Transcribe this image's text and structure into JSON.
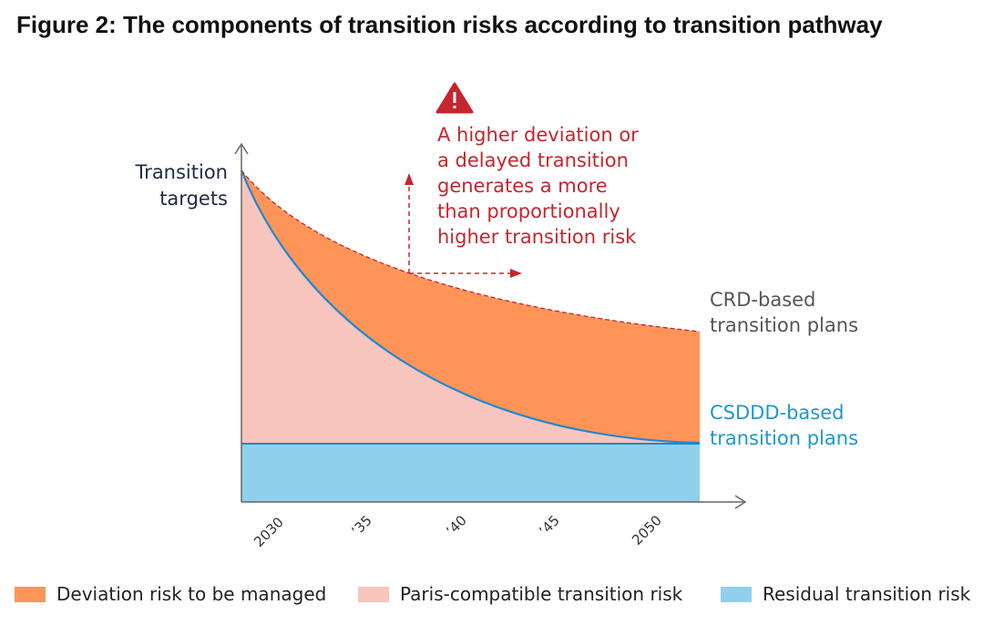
{
  "title": "Figure 2: The components of transition risks according to transition pathway",
  "y_axis_label": [
    "Transition",
    "targets"
  ],
  "x_ticks": [
    "2030",
    "’35",
    "’40",
    "’45",
    "2050"
  ],
  "annotation": {
    "icon": "warning-triangle-icon",
    "lines": [
      "A higher deviation or",
      "a delayed transition",
      "generates a more",
      "than proportionally",
      "higher transition risk"
    ]
  },
  "curve_labels": {
    "crd": [
      "CRD-based",
      "transition plans"
    ],
    "csddd": [
      "CSDDD-based",
      "transition plans"
    ]
  },
  "legend": [
    {
      "label": "Deviation risk to be managed",
      "color": "#ff9459"
    },
    {
      "label": "Paris-compatible transition risk",
      "color": "#f7c5bd"
    },
    {
      "label": "Residual transition risk",
      "color": "#8fd0ec"
    }
  ],
  "colors": {
    "deviation": "#ff9459",
    "paris": "#f7c5bd",
    "residual": "#8fd0ec",
    "csddd_line": "#1e88d0",
    "crd_line": "#c4262e",
    "annotation_text": "#c4262e",
    "axis": "#666666",
    "axis_label": "#1f2a44",
    "crd_label": "#555555",
    "csddd_label": "#1d97cf"
  }
}
